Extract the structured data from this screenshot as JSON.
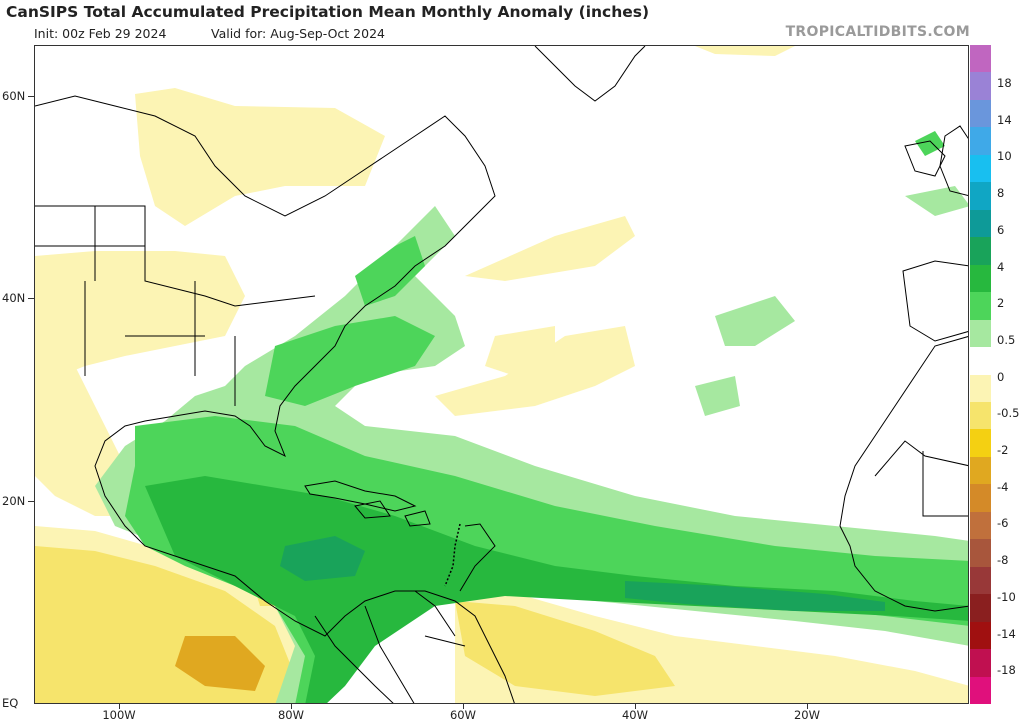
{
  "header": {
    "title": "CanSIPS Total Accumulated Precipitation Mean Monthly Anomaly (inches)",
    "init": "Init: 00z Feb 29 2024",
    "valid": "Valid for: Aug-Sep-Oct 2024",
    "credit": "TROPICALTIDBITS.COM"
  },
  "axes": {
    "lat_labels": [
      "60N",
      "40N",
      "20N",
      "EQ"
    ],
    "lon_labels": [
      "100W",
      "80W",
      "60W",
      "40W",
      "20W"
    ]
  },
  "colorbar": {
    "labels": [
      "18",
      "14",
      "10",
      "8",
      "6",
      "4",
      "2",
      "0.5",
      "0",
      "-0.5",
      "-2",
      "-4",
      "-6",
      "-8",
      "-10",
      "-14",
      "-18"
    ],
    "colors": [
      "#c066c0",
      "#9a82d6",
      "#6a96dc",
      "#3fa9e8",
      "#18bff0",
      "#10a6c4",
      "#0e9a98",
      "#19a35a",
      "#27b83e",
      "#4dd55a",
      "#a6e8a0",
      "#ffffff",
      "#fcf4b4",
      "#f6e46c",
      "#f4d012",
      "#e0a820",
      "#d48a28",
      "#c0703c",
      "#a8563c",
      "#983838",
      "#8a1f1f",
      "#a01010",
      "#c01050",
      "#e0107c"
    ]
  },
  "colors": {
    "land_outline": "#000000",
    "wet": "#3ccf4e",
    "dry": "#f6e46c"
  }
}
